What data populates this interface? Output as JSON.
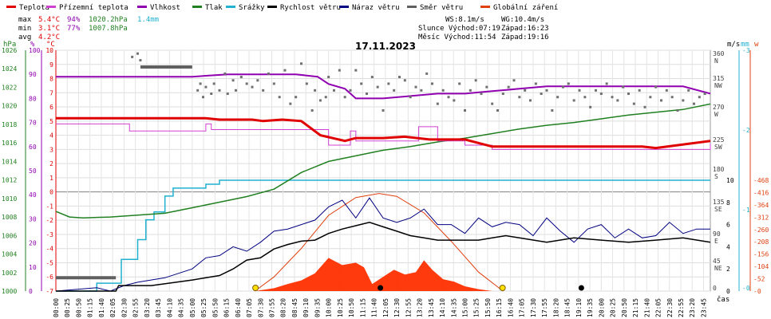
{
  "chart_data": {
    "type": "line",
    "title": "17.11.2023",
    "legend": [
      {
        "key": "teplota",
        "label": "Teplota",
        "color": "#e00000"
      },
      {
        "key": "pocitova",
        "label": "Přízemní teplota",
        "color": "#d040d0"
      },
      {
        "key": "vlhkost",
        "label": "Vlhkost",
        "color": "#9000b0"
      },
      {
        "key": "tlak",
        "label": "Tlak",
        "color": "#208020"
      },
      {
        "key": "srazky",
        "label": "Srážky",
        "color": "#20b0d0"
      },
      {
        "key": "rychlost",
        "label": "Rychlost větru",
        "color": "#000000"
      },
      {
        "key": "naraz",
        "label": "Náraz větru",
        "color": "#000080"
      },
      {
        "key": "smer",
        "label": "Směr větru",
        "color": "#606060"
      },
      {
        "key": "zareni",
        "label": "Globální záření",
        "color": "#e04010"
      }
    ],
    "stats": {
      "max_label": "max",
      "min_label": "min",
      "avg_label": "avg",
      "max_temp": "5.4°C",
      "max_hum": "94%",
      "max_press": "1020.2hPa",
      "max_rain": "1.4mm",
      "min_temp": "3.1°C",
      "min_hum": "77%",
      "min_press": "1007.8hPa",
      "avg_temp": "4.2°C"
    },
    "info": {
      "ws": "WS:8.1m/s",
      "wg": "WG:10.4m/s",
      "slunce": "Slunce Východ:07:19",
      "slunce_z": "Západ:16:23",
      "mesic": "Měsíc  Východ:11:54",
      "mesic_z": "Západ:19:16"
    },
    "axis_units": {
      "hpa": "hPa",
      "pct": "%",
      "degc": "°C",
      "ms": "m/s",
      "mm": "mm",
      "w": "w",
      "cas": "čas"
    },
    "axes": {
      "hpa": [
        "1000",
        "1002",
        "1004",
        "1006",
        "1008",
        "1010",
        "1012",
        "1014",
        "1016",
        "1018",
        "1020",
        "1022",
        "1024",
        "1026"
      ],
      "pct": [
        "0",
        "10",
        "20",
        "30",
        "40",
        "50",
        "60",
        "70",
        "80",
        "90",
        "100"
      ],
      "degc": [
        "-7",
        "-6",
        "-5",
        "-4",
        "-3",
        "-2",
        "-1",
        "0",
        "1",
        "2",
        "3",
        "4",
        "5",
        "6",
        "7",
        "8",
        "9",
        "10"
      ],
      "dir_deg": [
        "360",
        "315",
        "270",
        "225",
        "180",
        "135",
        "90",
        "45",
        "0"
      ],
      "dir_lbl": [
        "N",
        "NW",
        "W",
        "SW",
        "S",
        "SE",
        "E",
        "NE",
        ""
      ],
      "ms_top": [
        "3",
        "2"
      ],
      "ms_wind": [
        "10",
        "8",
        "6",
        "4",
        "2",
        "0"
      ],
      "mm": [
        "1",
        "0"
      ],
      "rad": [
        "468",
        "416",
        "364",
        "312",
        "260",
        "208",
        "156",
        "104",
        "52",
        "0"
      ]
    },
    "x_ticks": [
      "00:00",
      "00:25",
      "00:50",
      "01:15",
      "01:40",
      "02:05",
      "02:30",
      "02:55",
      "03:20",
      "03:45",
      "04:10",
      "04:35",
      "05:00",
      "05:25",
      "05:50",
      "06:15",
      "06:40",
      "07:05",
      "07:30",
      "07:55",
      "08:20",
      "08:45",
      "09:10",
      "09:35",
      "10:00",
      "10:25",
      "10:50",
      "11:15",
      "11:40",
      "12:05",
      "12:30",
      "12:55",
      "13:20",
      "13:45",
      "14:10",
      "14:35",
      "15:00",
      "15:25",
      "15:50",
      "16:15",
      "16:40",
      "17:05",
      "17:30",
      "17:55",
      "18:20",
      "18:45",
      "19:10",
      "19:35",
      "20:00",
      "20:25",
      "20:50",
      "21:15",
      "21:40",
      "22:05",
      "22:30",
      "22:55",
      "23:20",
      "23:45"
    ],
    "series": {
      "teplota": {
        "t": [
          0,
          5.5,
          6,
          7.2,
          7.6,
          8.3,
          9.0,
          9.7,
          10.6,
          11.0,
          12.0,
          12.8,
          13.7,
          15.0,
          16.0,
          18.0,
          20.0,
          21.5,
          22.0,
          24.0
        ],
        "v": [
          5.2,
          5.2,
          5.1,
          5.1,
          5.0,
          5.1,
          5.0,
          4.0,
          3.6,
          3.8,
          3.8,
          3.9,
          3.7,
          3.7,
          3.2,
          3.2,
          3.2,
          3.2,
          3.1,
          3.6
        ]
      },
      "pocitova": {
        "t": [
          0,
          2.5,
          2.7,
          5.5,
          5.7,
          9.7,
          10.0,
          10.8,
          11.0,
          13.1,
          13.3,
          13.7,
          14.0,
          15.0,
          16.0,
          22.8,
          23.0,
          24.0
        ],
        "v": [
          4.8,
          4.8,
          4.3,
          4.8,
          4.4,
          4.4,
          3.3,
          4.3,
          3.6,
          3.6,
          4.6,
          4.6,
          3.6,
          3.3,
          3.0,
          3.0,
          3.0,
          3.4
        ]
      },
      "vlhkost": {
        "t": [
          0,
          5,
          6.3,
          7.5,
          8.8,
          9.6,
          10.0,
          10.6,
          11.0,
          12.0,
          13.0,
          14.0,
          15.0,
          16.0,
          17.0,
          18.0,
          20.0,
          22.0,
          23.0,
          24.0
        ],
        "v": [
          89,
          89,
          90,
          90,
          90,
          89,
          86,
          84,
          80,
          80,
          81,
          82,
          82,
          83,
          84,
          85,
          85,
          85,
          85,
          82
        ]
      },
      "tlak": {
        "t": [
          0,
          0.5,
          1.0,
          2.0,
          4.0,
          5.0,
          6.0,
          7.0,
          8.0,
          9.0,
          10.0,
          11.0,
          12.0,
          13.0,
          14.0,
          15.0,
          16.0,
          17.0,
          18.0,
          19.0,
          20.0,
          21.0,
          22.0,
          23.0,
          24.0
        ],
        "v": [
          1008.6,
          1008.0,
          1007.9,
          1008.0,
          1008.4,
          1009.0,
          1009.6,
          1010.2,
          1011.0,
          1012.8,
          1014.0,
          1014.6,
          1015.2,
          1015.6,
          1016.1,
          1016.5,
          1017.0,
          1017.5,
          1017.9,
          1018.2,
          1018.6,
          1019.0,
          1019.3,
          1019.6,
          1020.2
        ]
      },
      "srazky": {
        "t": [
          0,
          1.5,
          1.6,
          2.4,
          3.0,
          3.3,
          3.6,
          4.0,
          4.3,
          5.0,
          5.5,
          6.0,
          6.2,
          24.0
        ],
        "v": [
          0,
          0.1,
          0.1,
          0.4,
          0.65,
          0.9,
          1.0,
          1.2,
          1.3,
          1.3,
          1.35,
          1.4,
          1.4,
          1.4
        ]
      },
      "rychlost": {
        "t": [
          0,
          2.2,
          2.3,
          3.5,
          5.0,
          5.5,
          6.0,
          6.5,
          7.0,
          7.5,
          8.0,
          8.5,
          9.0,
          9.5,
          10.0,
          10.5,
          11.0,
          11.5,
          12.0,
          12.5,
          13.0,
          13.5,
          14.0,
          14.5,
          15.0,
          15.5,
          16.0,
          16.5,
          17.0,
          18.0,
          19.0,
          20.0,
          21.0,
          22.0,
          23.0,
          24.0
        ],
        "v": [
          0,
          0,
          0.5,
          0.5,
          1.0,
          1.2,
          1.4,
          2.0,
          2.8,
          3.0,
          3.8,
          4.2,
          4.5,
          4.6,
          5.2,
          5.6,
          5.9,
          6.2,
          5.8,
          5.4,
          5.0,
          4.8,
          4.6,
          4.6,
          4.6,
          4.6,
          4.8,
          5.0,
          4.8,
          4.4,
          4.8,
          4.6,
          4.4,
          4.6,
          4.8,
          4.4
        ]
      },
      "naraz": {
        "t": [
          0,
          1.5,
          2.0,
          2.5,
          3.0,
          4.0,
          5.0,
          5.5,
          6.0,
          6.5,
          7.0,
          7.5,
          8.0,
          8.5,
          9.0,
          9.5,
          10.0,
          10.5,
          11.0,
          11.5,
          12.0,
          12.5,
          13.0,
          13.5,
          14.0,
          14.5,
          15.0,
          15.5,
          16.0,
          16.5,
          17.0,
          17.5,
          18.0,
          18.5,
          19.0,
          19.5,
          20.0,
          20.5,
          21.0,
          21.5,
          22.0,
          22.5,
          23.0,
          23.5,
          24.0
        ],
        "v": [
          0,
          0.3,
          0,
          0.5,
          0.8,
          1.2,
          2.0,
          3.0,
          3.2,
          4.0,
          3.6,
          4.4,
          5.4,
          5.6,
          6.0,
          6.4,
          7.6,
          8.2,
          6.6,
          8.4,
          6.6,
          6.2,
          6.6,
          7.4,
          6.0,
          6.0,
          5.2,
          6.6,
          5.8,
          6.2,
          6.0,
          5.0,
          6.6,
          5.4,
          4.4,
          5.6,
          6.0,
          4.8,
          5.6,
          4.8,
          5.0,
          6.2,
          5.2,
          5.6,
          5.6
        ]
      },
      "zareni": {
        "t": [
          7.3,
          8.0,
          8.5,
          9.0,
          9.5,
          10.0,
          10.5,
          11.0,
          11.3,
          11.6,
          12.0,
          12.4,
          12.8,
          13.2,
          13.5,
          13.8,
          14.2,
          14.6,
          15.0,
          15.5,
          16.0
        ],
        "v": [
          0,
          12,
          30,
          45,
          75,
          140,
          110,
          120,
          100,
          30,
          60,
          90,
          70,
          80,
          130,
          90,
          50,
          40,
          20,
          8,
          0
        ]
      },
      "zareni_teor": {
        "t": [
          7.3,
          8.0,
          9.0,
          10.0,
          11.0,
          11.85,
          12.5,
          13.5,
          14.5,
          15.5,
          16.4
        ],
        "v": [
          0,
          60,
          180,
          320,
          395,
          412,
          400,
          330,
          210,
          80,
          0
        ]
      }
    },
    "wind_dir": {
      "t": [
        2.8,
        3.0,
        3.1,
        5.2,
        5.3,
        5.4,
        5.5,
        5.7,
        5.8,
        6.0,
        6.2,
        6.3,
        6.5,
        6.6,
        6.8,
        7.0,
        7.2,
        7.4,
        7.6,
        7.8,
        8.0,
        8.2,
        8.4,
        8.6,
        8.8,
        9.0,
        9.2,
        9.4,
        9.5,
        9.7,
        9.9,
        10.0,
        10.2,
        10.4,
        10.6,
        10.8,
        11.0,
        11.2,
        11.4,
        11.6,
        11.8,
        12.0,
        12.2,
        12.4,
        12.6,
        12.8,
        13.0,
        13.2,
        13.4,
        13.6,
        13.8,
        14.0,
        14.2,
        14.4,
        14.6,
        14.8,
        15.0,
        15.2,
        15.4,
        15.6,
        15.8,
        16.0,
        16.2,
        16.4,
        16.6,
        16.8,
        17.0,
        17.2,
        17.4,
        17.6,
        17.8,
        18.0,
        18.2,
        18.4,
        18.6,
        18.8,
        19.0,
        19.2,
        19.4,
        19.6,
        19.8,
        20.0,
        20.2,
        20.4,
        20.6,
        20.8,
        21.0,
        21.2,
        21.4,
        21.6,
        21.8,
        22.0,
        22.2,
        22.4,
        22.6,
        22.8,
        23.0,
        23.2,
        23.4,
        23.6,
        23.8
      ],
      "v": [
        350,
        355,
        345,
        300,
        310,
        290,
        305,
        295,
        310,
        300,
        325,
        295,
        315,
        300,
        320,
        310,
        305,
        315,
        300,
        325,
        310,
        290,
        330,
        280,
        290,
        340,
        310,
        270,
        300,
        285,
        290,
        320,
        300,
        330,
        290,
        300,
        330,
        310,
        295,
        320,
        305,
        270,
        310,
        300,
        320,
        315,
        290,
        305,
        300,
        325,
        310,
        280,
        300,
        290,
        285,
        310,
        270,
        300,
        315,
        295,
        305,
        280,
        270,
        295,
        305,
        315,
        290,
        300,
        285,
        310,
        295,
        300,
        270,
        290,
        305,
        310,
        285,
        300,
        290,
        275,
        300,
        295,
        310,
        290,
        285,
        305,
        295,
        280,
        300,
        275,
        290,
        305,
        285,
        300,
        290,
        270,
        285,
        300,
        280,
        290,
        295
      ]
    },
    "wind_dir_static": {
      "t": [
        0,
        2.2,
        3.1,
        5.0
      ],
      "v": [
        20,
        20,
        335,
        335
      ]
    }
  }
}
